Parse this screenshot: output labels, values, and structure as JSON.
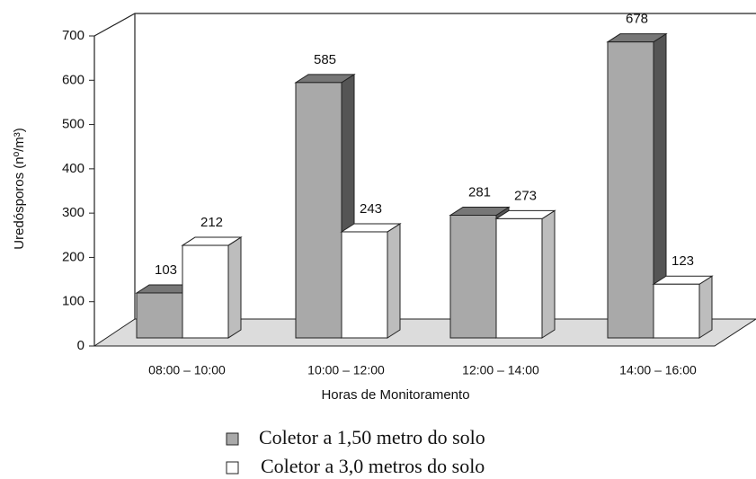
{
  "chart_data": {
    "type": "bar3d",
    "y_label": "Uredósporos (nº/m³)",
    "x_label": "Horas de Monitoramento",
    "categories": [
      "08:00 – 10:00",
      "10:00 – 12:00",
      "12:00 – 14:00",
      "14:00 – 16:00"
    ],
    "series": [
      {
        "name": "Coletor a 1,50 metro do solo",
        "color": "#a9a9a9",
        "values": [
          103,
          585,
          281,
          678
        ]
      },
      {
        "name": "Coletor a 3,0 metros do solo",
        "color": "#ffffff",
        "values": [
          212,
          243,
          273,
          123
        ]
      }
    ],
    "ylim": [
      0,
      700
    ],
    "yticks": [
      0,
      100,
      200,
      300,
      400,
      500,
      600,
      700
    ]
  }
}
